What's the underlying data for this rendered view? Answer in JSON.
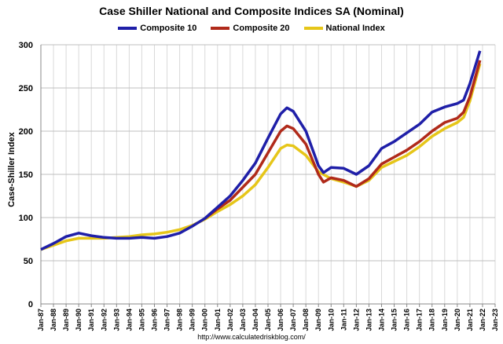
{
  "chart_data": {
    "type": "line",
    "title": "Case Shiller National and Composite Indices SA (Nominal)",
    "ylabel": "Case-Shiller Index",
    "xlabel": "",
    "ylim": [
      0,
      300
    ],
    "yticks": [
      0,
      50,
      100,
      150,
      200,
      250,
      300
    ],
    "xticks": [
      "Jan-87",
      "Jan-88",
      "Jan-89",
      "Jan-90",
      "Jan-91",
      "Jan-92",
      "Jan-93",
      "Jan-94",
      "Jan-95",
      "Jan-96",
      "Jan-97",
      "Jan-98",
      "Jan-99",
      "Jan-00",
      "Jan-01",
      "Jan-02",
      "Jan-03",
      "Jan-04",
      "Jan-05",
      "Jan-06",
      "Jan-07",
      "Jan-08",
      "Jan-09",
      "Jan-10",
      "Jan-11",
      "Jan-12",
      "Jan-13",
      "Jan-14",
      "Jan-15",
      "Jan-16",
      "Jan-17",
      "Jan-18",
      "Jan-19",
      "Jan-20",
      "Jan-21",
      "Jan-22",
      "Jan-23"
    ],
    "xlim": [
      1987,
      2023
    ],
    "grid": true,
    "legend_position": "top",
    "series": [
      {
        "name": "Composite 10",
        "color": "#1f1fa8",
        "x": [
          1987,
          1988,
          1989,
          1990,
          1991,
          1992,
          1993,
          1994,
          1995,
          1996,
          1997,
          1998,
          1999,
          2000,
          2001,
          2002,
          2003,
          2004,
          2005,
          2006,
          2006.5,
          2007,
          2008,
          2009,
          2009.4,
          2010,
          2011,
          2012,
          2013,
          2014,
          2015,
          2016,
          2017,
          2018,
          2019,
          2020,
          2020.5,
          2021,
          2021.8
        ],
        "y": [
          63,
          70,
          78,
          82,
          79,
          77,
          76,
          76,
          77,
          76,
          78,
          82,
          90,
          99,
          112,
          125,
          143,
          163,
          192,
          220,
          227,
          223,
          200,
          160,
          152,
          158,
          157,
          150,
          160,
          180,
          188,
          198,
          208,
          222,
          228,
          232,
          236,
          255,
          293
        ]
      },
      {
        "name": "Composite 20",
        "color": "#b02a1a",
        "x": [
          2000,
          2001,
          2002,
          2003,
          2004,
          2005,
          2006,
          2006.5,
          2007,
          2008,
          2009,
          2009.4,
          2010,
          2011,
          2012,
          2013,
          2014,
          2015,
          2016,
          2017,
          2018,
          2019,
          2020,
          2020.5,
          2021,
          2021.8
        ],
        "y": [
          99,
          110,
          120,
          135,
          150,
          175,
          200,
          206,
          203,
          185,
          150,
          141,
          146,
          143,
          136,
          145,
          162,
          170,
          178,
          188,
          200,
          210,
          215,
          222,
          240,
          282
        ]
      },
      {
        "name": "National Index",
        "color": "#e6c619",
        "x": [
          1987,
          1988,
          1989,
          1990,
          1991,
          1992,
          1993,
          1994,
          1995,
          1996,
          1997,
          1998,
          1999,
          2000,
          2001,
          2002,
          2003,
          2004,
          2005,
          2006,
          2006.5,
          2007,
          2008,
          2009,
          2010,
          2011,
          2012,
          2013,
          2014,
          2015,
          2016,
          2017,
          2018,
          2019,
          2020,
          2020.5,
          2021,
          2021.8
        ],
        "y": [
          63,
          68,
          73,
          76,
          76,
          76,
          77,
          78,
          80,
          81,
          83,
          86,
          91,
          98,
          107,
          115,
          125,
          138,
          158,
          180,
          184,
          183,
          172,
          153,
          145,
          141,
          136,
          143,
          158,
          165,
          172,
          182,
          194,
          203,
          210,
          216,
          235,
          278
        ]
      }
    ]
  },
  "source": "http://www.calculatedriskblog.com/"
}
